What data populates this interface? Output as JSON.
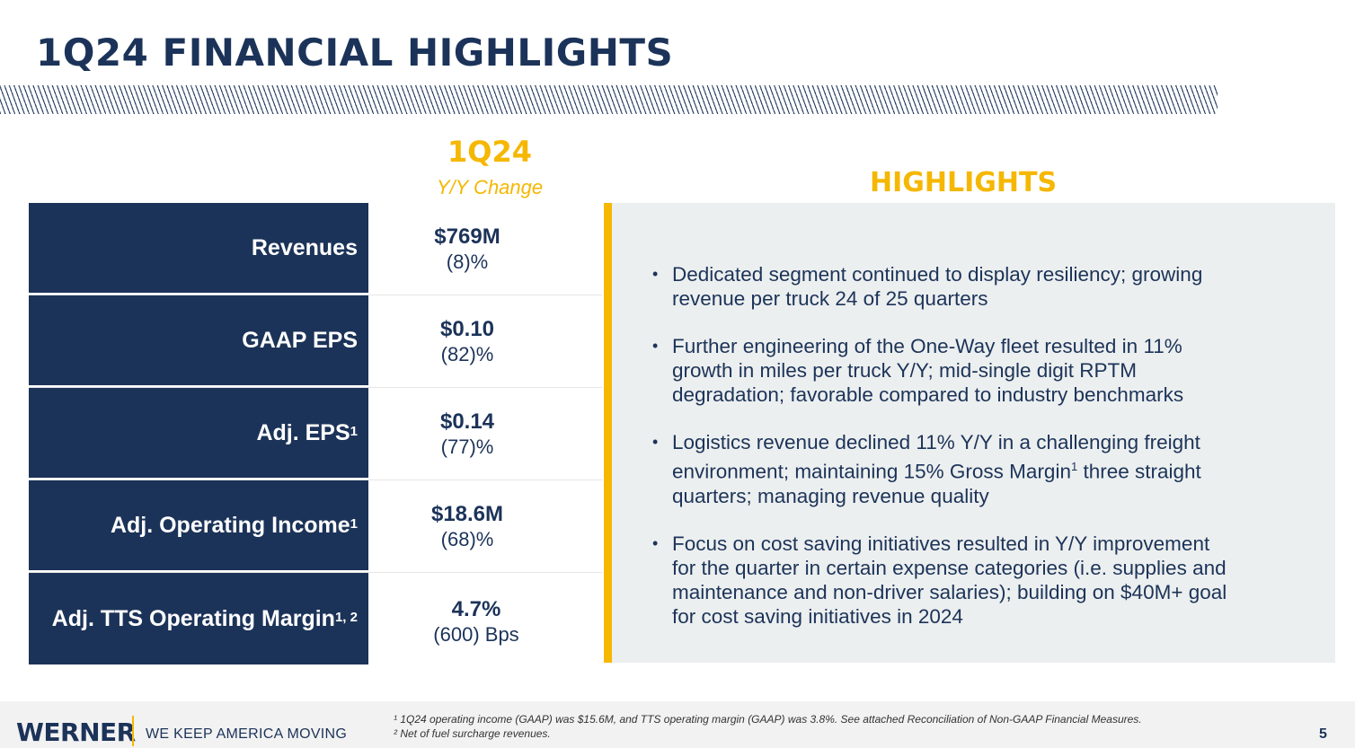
{
  "title": "1Q24 FINANCIAL HIGHLIGHTS",
  "column": {
    "period": "1Q24",
    "subtitle": "Y/Y Change"
  },
  "metrics": [
    {
      "label": "Revenues",
      "sup": "",
      "value": "$769M",
      "change": "(8)%"
    },
    {
      "label": "GAAP EPS",
      "sup": "",
      "value": "$0.10",
      "change": "(82)%"
    },
    {
      "label": "Adj. EPS",
      "sup": "1",
      "value": "$0.14",
      "change": "(77)%"
    },
    {
      "label": "Adj. Operating Income",
      "sup": "1",
      "value": "$18.6M",
      "change": "(68)%"
    },
    {
      "label": "Adj. TTS Operating Margin",
      "sup": "1, 2",
      "value": "4.7%",
      "change": "(600) Bps"
    }
  ],
  "highlights": {
    "title": "HIGHLIGHTS",
    "items": [
      {
        "text": "Dedicated segment continued to display resiliency; growing revenue per truck 24 of 25 quarters"
      },
      {
        "text": "Further engineering of the One-Way fleet resulted in 11% growth in miles per truck Y/Y; mid-single digit RPTM degradation; favorable compared to industry benchmarks"
      },
      {
        "text_a": "Logistics revenue declined 11% Y/Y in a challenging freight environment; maintaining 15% Gross Margin",
        "sup": "1",
        "text_b": " three straight quarters; managing revenue quality"
      },
      {
        "text": "Focus on cost saving initiatives resulted in Y/Y improvement for the quarter in certain expense categories (i.e. supplies and maintenance and non-driver salaries); building on $40M+ goal for cost saving initiatives in 2024"
      }
    ]
  },
  "footer": {
    "logo": "WERNER",
    "tagline": "WE KEEP AMERICA MOVING",
    "footnote1": "¹ 1Q24 operating income (GAAP) was $15.6M, and TTS operating margin (GAAP) was 3.8%. See attached Reconciliation of Non-GAAP Financial Measures.",
    "footnote2": "² Net of fuel surcharge revenues.",
    "page": "5"
  },
  "colors": {
    "navy": "#1c3359",
    "gold": "#f5b700",
    "panel": "#ecefef"
  }
}
